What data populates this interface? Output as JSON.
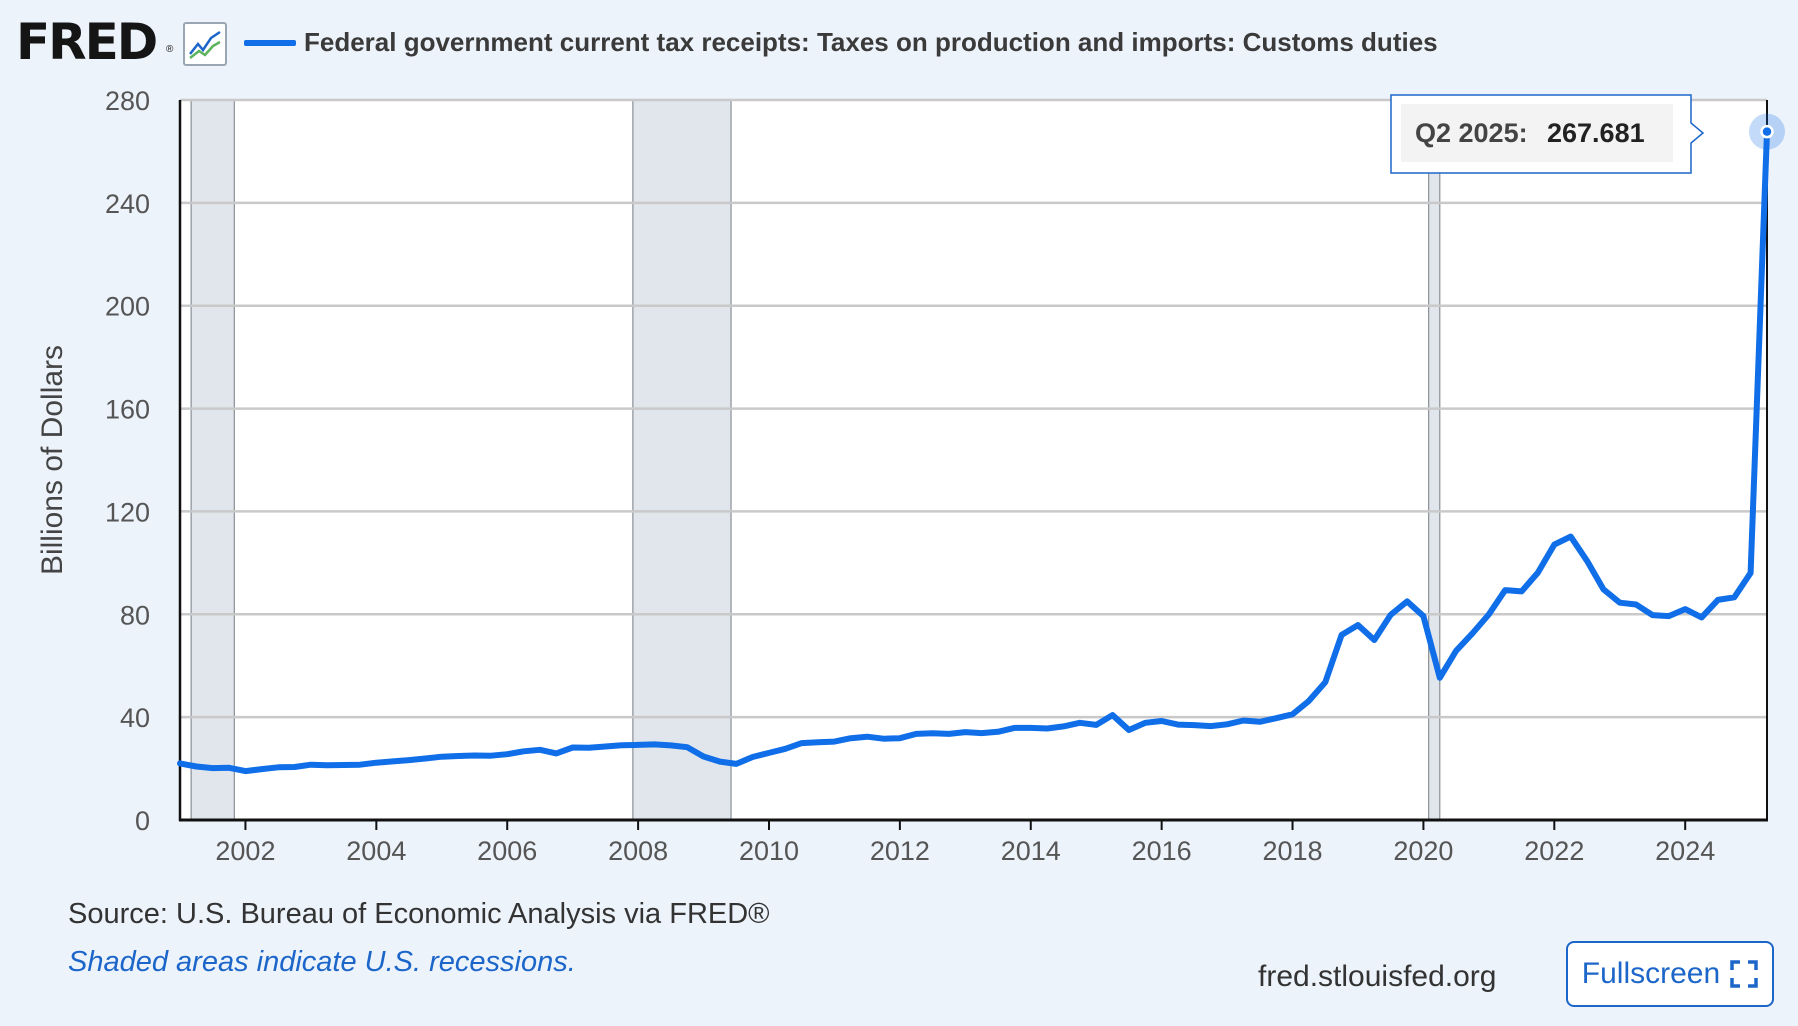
{
  "header": {
    "logo": "FRED",
    "logo_mark": "®",
    "logo_icon": "line-chart-icon",
    "series_title": "Federal government current tax receipts: Taxes on production and imports: Customs duties"
  },
  "chart_data": {
    "type": "line",
    "title": "Federal government current tax receipts: Taxes on production and imports: Customs duties",
    "xlabel": "",
    "ylabel": "Billions of Dollars",
    "xlim": [
      2001.0,
      2025.25
    ],
    "ylim": [
      0,
      280
    ],
    "yticks": [
      0,
      40,
      80,
      120,
      160,
      200,
      240,
      280
    ],
    "xticks": [
      2002,
      2004,
      2006,
      2008,
      2010,
      2012,
      2014,
      2016,
      2018,
      2020,
      2022,
      2024
    ],
    "grid": true,
    "recessions": [
      [
        2001.17,
        2001.83
      ],
      [
        2007.92,
        2009.42
      ],
      [
        2020.08,
        2020.25
      ]
    ],
    "series": [
      {
        "name": "Customs duties",
        "color": "#0f6ee8",
        "x": [
          2001.0,
          2001.25,
          2001.5,
          2001.75,
          2002.0,
          2002.25,
          2002.5,
          2002.75,
          2003.0,
          2003.25,
          2003.5,
          2003.75,
          2004.0,
          2004.25,
          2004.5,
          2004.75,
          2005.0,
          2005.25,
          2005.5,
          2005.75,
          2006.0,
          2006.25,
          2006.5,
          2006.75,
          2007.0,
          2007.25,
          2007.5,
          2007.75,
          2008.0,
          2008.25,
          2008.5,
          2008.75,
          2009.0,
          2009.25,
          2009.5,
          2009.75,
          2010.0,
          2010.25,
          2010.5,
          2010.75,
          2011.0,
          2011.25,
          2011.5,
          2011.75,
          2012.0,
          2012.25,
          2012.5,
          2012.75,
          2013.0,
          2013.25,
          2013.5,
          2013.75,
          2014.0,
          2014.25,
          2014.5,
          2014.75,
          2015.0,
          2015.25,
          2015.5,
          2015.75,
          2016.0,
          2016.25,
          2016.5,
          2016.75,
          2017.0,
          2017.25,
          2017.5,
          2017.75,
          2018.0,
          2018.25,
          2018.5,
          2018.75,
          2019.0,
          2019.25,
          2019.5,
          2019.75,
          2020.0,
          2020.25,
          2020.5,
          2020.75,
          2021.0,
          2021.25,
          2021.5,
          2021.75,
          2022.0,
          2022.25,
          2022.5,
          2022.75,
          2023.0,
          2023.25,
          2023.5,
          2023.75,
          2024.0,
          2024.25,
          2024.5,
          2024.75,
          2025.0,
          2025.25
        ],
        "values": [
          22.0,
          20.8,
          20.2,
          20.3,
          19.0,
          19.8,
          20.5,
          20.6,
          21.5,
          21.3,
          21.4,
          21.5,
          22.3,
          22.8,
          23.3,
          23.9,
          24.6,
          24.9,
          25.1,
          25.0,
          25.6,
          26.7,
          27.3,
          25.9,
          28.2,
          28.1,
          28.6,
          29.1,
          29.2,
          29.4,
          29.0,
          28.3,
          24.7,
          22.7,
          21.8,
          24.5,
          26.1,
          27.7,
          29.9,
          30.2,
          30.5,
          31.8,
          32.4,
          31.6,
          31.8,
          33.5,
          33.7,
          33.5,
          34.2,
          33.8,
          34.3,
          35.8,
          35.8,
          35.6,
          36.4,
          37.8,
          37.0,
          40.8,
          35.0,
          37.8,
          38.5,
          37.1,
          36.9,
          36.5,
          37.2,
          38.7,
          38.2,
          39.6,
          41.1,
          46.3,
          53.6,
          72.0,
          75.8,
          70.0,
          79.8,
          85.0,
          79.3,
          55.3,
          65.8,
          72.6,
          80.0,
          89.4,
          88.9,
          96.2,
          107.1,
          110.2,
          100.8,
          89.7,
          84.5,
          83.8,
          79.7,
          79.3,
          82.0,
          78.8,
          85.6,
          86.6,
          96.1,
          267.681
        ]
      }
    ],
    "tooltip": {
      "label": "Q2 2025:",
      "value": "267.681"
    }
  },
  "footer": {
    "source": "Source: U.S. Bureau of Economic Analysis via FRED®",
    "note": "Shaded areas indicate U.S. recessions.",
    "url": "fred.stlouisfed.org",
    "fullscreen_label": "Fullscreen",
    "fullscreen_icon": "fullscreen-icon"
  }
}
